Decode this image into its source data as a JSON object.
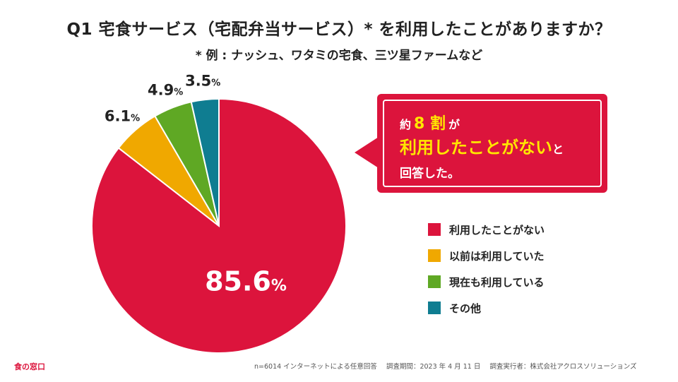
{
  "header": {
    "title": "Q1 宅食サービス（宅配弁当サービス）* を利用したことがありますか？",
    "subtitle": "* 例 : ナッシュ、ワタミの宅食、三ツ星ファームなど"
  },
  "chart_data": {
    "type": "pie",
    "title": "Q1 宅食サービス（宅配弁当サービス）* を利用したことがありますか？",
    "unit": "%",
    "slices": [
      {
        "label": "利用したことがない",
        "value": 85.6,
        "color": "#dc143c"
      },
      {
        "label": "以前は利用していた",
        "value": 6.1,
        "color": "#f0a800"
      },
      {
        "label": "現在も利用している",
        "value": 4.9,
        "color": "#5fa824"
      },
      {
        "label": "その他",
        "value": 3.5,
        "color": "#0f7d91"
      }
    ],
    "legend_position": "right"
  },
  "callout": {
    "line1_prefix": "約",
    "line1_highlight": "8 割",
    "line1_suffix": "が",
    "line2_highlight": "利用したことがない",
    "line2_suffix": "と",
    "line3": "回答した。"
  },
  "footer": {
    "logo": "食の窓口",
    "sample": "n=6014 インターネットによる任意回答",
    "period": "調査期間：2023 年 4 月 11 日",
    "organizer": "調査実行者：株式会社アクロスソリューションズ"
  }
}
